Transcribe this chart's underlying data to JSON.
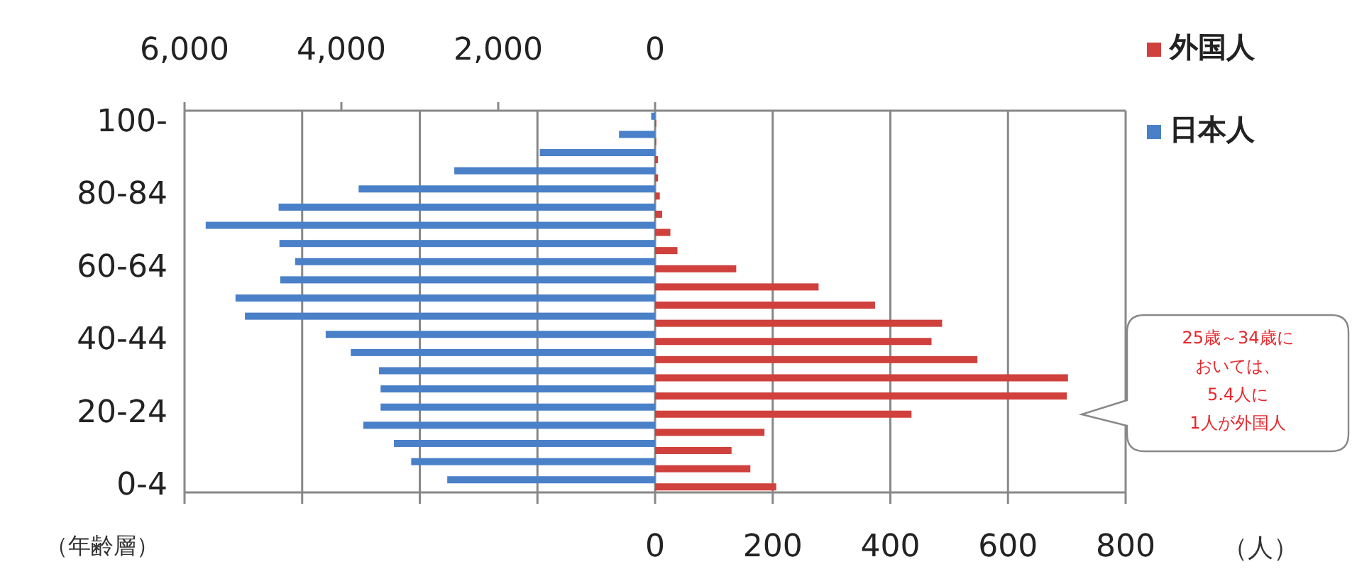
{
  "chart_data": {
    "type": "bar",
    "orientation": "horizontal",
    "categories": [
      "100-",
      null,
      null,
      null,
      "80-84",
      null,
      null,
      null,
      "60-64",
      null,
      null,
      null,
      "40-44",
      null,
      null,
      null,
      "20-24",
      null,
      null,
      null,
      "0-4"
    ],
    "series": [
      {
        "name": "外国人",
        "color": "#d0403c",
        "values": [
          2,
          2,
          5,
          5,
          8,
          12,
          26,
          38,
          138,
          278,
          374,
          488,
          470,
          548,
          702,
          700,
          436,
          186,
          130,
          162,
          206
        ]
      },
      {
        "name": "日本人",
        "color": "#4a80c8",
        "axis": "x2",
        "values": [
          50,
          460,
          1470,
          2560,
          3780,
          4800,
          5730,
          4790,
          4590,
          4780,
          5350,
          5230,
          4200,
          3880,
          3520,
          3500,
          3500,
          3720,
          3330,
          3110,
          2650
        ]
      }
    ],
    "xlim": [
      -800,
      800
    ],
    "xticks": [
      {
        "value": -800,
        "label": null
      },
      {
        "value": -600,
        "label": null
      },
      {
        "value": -400,
        "label": null
      },
      {
        "value": -200,
        "label": null
      },
      0,
      200,
      400,
      600,
      800
    ],
    "x2lim": [
      6000,
      -6000
    ],
    "x2ticks": [
      {
        "value": 6000,
        "label": "6,000"
      },
      {
        "value": 4000,
        "label": "4,000"
      },
      {
        "value": 2000,
        "label": "2,000"
      },
      0
    ],
    "xlabel": "（人）",
    "ylabel": "（年齢層）",
    "annotations": [
      "25歳～34歳に",
      "おいては、",
      "5.4人に",
      "1人が外国人"
    ],
    "grid": "x",
    "legend": "top right"
  }
}
